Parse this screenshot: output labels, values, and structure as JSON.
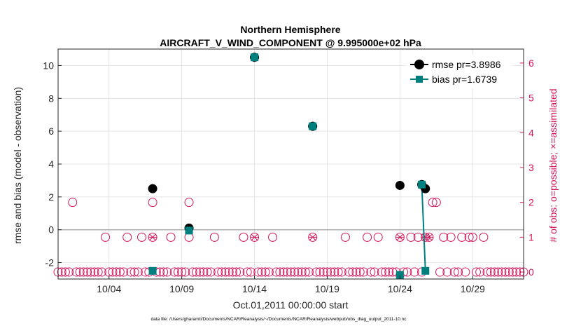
{
  "chart_data": {
    "type": "scatter",
    "title_line1": "Northern Hemisphere",
    "title_line2": "AIRCRAFT_V_WIND_COMPONENT @ 9.995000e+02 hPa",
    "xlabel": "Oct.01,2011 00:00:00 start",
    "ylabel_left": "rmse and bias (model - observation)",
    "ylabel_right": "# of obs: o=possible; ×=assimilated",
    "footnote": "data file: /Users/gharamti/Documents/NCAR/Reanalysis/~/Documents/NCAR/Reanalysis/webpub/obs_diag_output_2011-10.nc",
    "xlim": [
      0,
      32
    ],
    "ylim_left": [
      -3,
      11
    ],
    "ylim_right": [
      -0.2,
      6.4
    ],
    "x_ticks": [
      {
        "value": 3.5,
        "label": "10/04"
      },
      {
        "value": 8.5,
        "label": "10/09"
      },
      {
        "value": 13.5,
        "label": "10/14"
      },
      {
        "value": 18.5,
        "label": "10/19"
      },
      {
        "value": 23.5,
        "label": "10/24"
      },
      {
        "value": 28.5,
        "label": "10/29"
      }
    ],
    "y_ticks_left": [
      -2,
      0,
      2,
      4,
      6,
      8,
      10
    ],
    "y_ticks_right": [
      0,
      1,
      2,
      3,
      4,
      5,
      6
    ],
    "legend": [
      {
        "label": "rmse pr=3.8986",
        "color": "#000000"
      },
      {
        "label": "bias pr=1.6739",
        "color": "#007f7f"
      }
    ],
    "rmse": [
      {
        "x": 6.5,
        "y": 2.5
      },
      {
        "x": 9.0,
        "y": 0.1
      },
      {
        "x": 13.5,
        "y": 10.5
      },
      {
        "x": 17.5,
        "y": 6.3
      },
      {
        "x": 23.5,
        "y": 2.7
      },
      {
        "x": 25.0,
        "y": 2.75
      },
      {
        "x": 25.25,
        "y": 2.5
      }
    ],
    "bias": [
      {
        "x": 6.5,
        "y": -2.5
      },
      {
        "x": 9.0,
        "y": -0.05
      },
      {
        "x": 13.5,
        "y": 10.5
      },
      {
        "x": 17.5,
        "y": 6.3
      },
      {
        "x": 23.5,
        "y": -2.75
      },
      {
        "x": 25.0,
        "y": 2.75
      },
      {
        "x": 25.25,
        "y": -2.5
      }
    ],
    "bias_line": [
      {
        "x": 25.0,
        "y": 2.75
      },
      {
        "x": 25.25,
        "y": -2.5
      }
    ],
    "obs_possible_count2": [
      1.0,
      6.5,
      9.0,
      25.75,
      26.0
    ],
    "obs_possible_count1": [
      3.25,
      4.75,
      5.75,
      6.5,
      7.75,
      9.0,
      10.75,
      12.75,
      13.5,
      14.75,
      17.5,
      19.75,
      21.25,
      22.0,
      23.5,
      24.25,
      24.75,
      25.25,
      25.5,
      26.5,
      27.0,
      27.75,
      28.25,
      28.5,
      29.25
    ],
    "obs_assimilated_count1": [
      6.5,
      13.5,
      17.5,
      23.5,
      25.25,
      25.5
    ],
    "obs_possible_count0_step": 0.25,
    "colors": {
      "rmse": "#000000",
      "bias": "#007f7f",
      "obs": "#d4145a",
      "grid": "#e4e4e4",
      "axis": "#262626",
      "zero_line": "#b0b0b0"
    }
  }
}
